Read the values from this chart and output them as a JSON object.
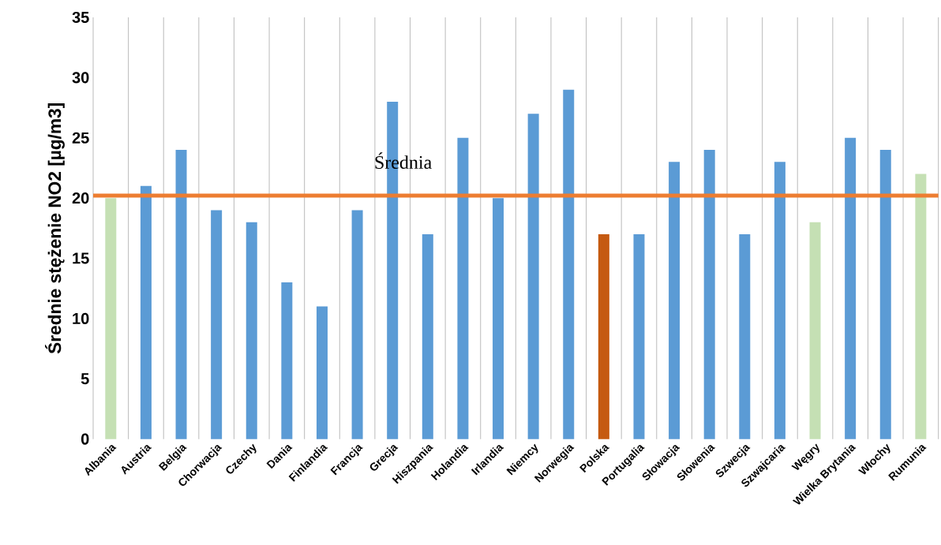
{
  "chart_data": {
    "type": "bar",
    "ylabel": "Średnie stężenie NO2 [µg/m3]",
    "categories": [
      "Albania",
      "Austria",
      "Belgia",
      "Chorwacja",
      "Czechy",
      "Dania",
      "Finlandia",
      "Francja",
      "Grecja",
      "Hiszpania",
      "Holandia",
      "Irlandia",
      "Niemcy",
      "Norwegia",
      "Polska",
      "Portugalia",
      "Słowacja",
      "Słowenia",
      "Szwecja",
      "Szwajcaria",
      "Węgry",
      "Wielka Brytania",
      "Włochy",
      "Rumunia"
    ],
    "values": [
      20,
      21,
      24,
      19,
      18,
      13,
      11,
      19,
      28,
      17,
      25,
      20,
      27,
      29,
      17,
      17,
      23,
      24,
      17,
      23,
      18,
      25,
      24,
      22
    ],
    "colors": [
      "#c5e0b4",
      "#5b9bd5",
      "#5b9bd5",
      "#5b9bd5",
      "#5b9bd5",
      "#5b9bd5",
      "#5b9bd5",
      "#5b9bd5",
      "#5b9bd5",
      "#5b9bd5",
      "#5b9bd5",
      "#5b9bd5",
      "#5b9bd5",
      "#5b9bd5",
      "#c55a11",
      "#5b9bd5",
      "#5b9bd5",
      "#5b9bd5",
      "#5b9bd5",
      "#5b9bd5",
      "#c5e0b4",
      "#5b9bd5",
      "#5b9bd5",
      "#c5e0b4"
    ],
    "ylim": [
      0,
      35
    ],
    "yticks": [
      0,
      5,
      10,
      15,
      20,
      25,
      30,
      35
    ],
    "grid": "x",
    "ref_lines": [
      {
        "axis": "y",
        "value": 20.2,
        "label": "Średnia",
        "color": "#ed7d31"
      }
    ]
  }
}
